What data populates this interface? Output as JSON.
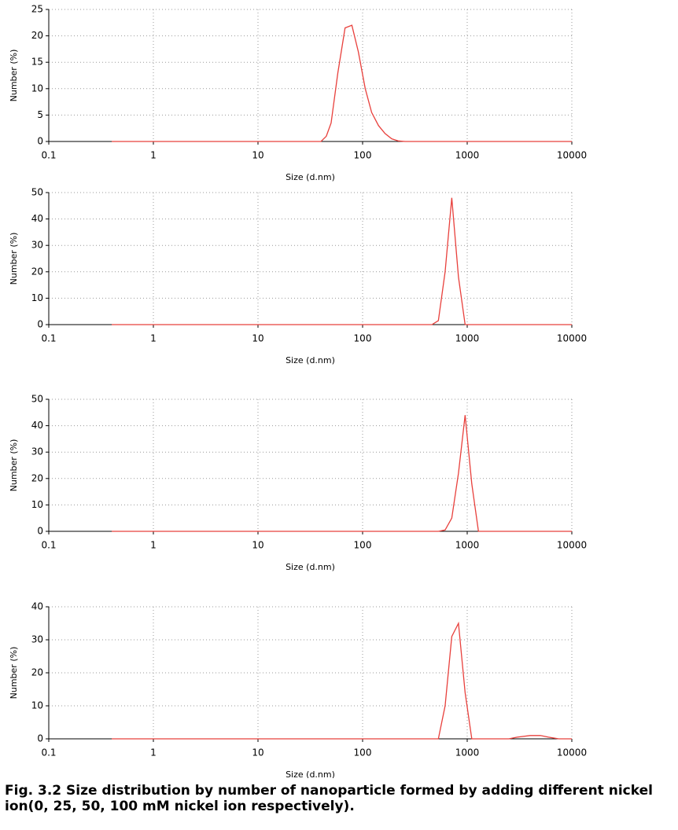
{
  "chart_data": [
    {
      "type": "line",
      "xlabel": "Size (d.nm)",
      "ylabel": "Number (%)",
      "xscale": "log",
      "grid": true,
      "xlim": [
        0.1,
        10000
      ],
      "xticks": [
        0.1,
        1,
        10,
        100,
        1000,
        10000
      ],
      "ylim": [
        0,
        25
      ],
      "yticks": [
        0,
        5,
        10,
        15,
        20,
        25
      ],
      "x": [
        0.4,
        40,
        45,
        50,
        58,
        68,
        79,
        91,
        106,
        122,
        142,
        164,
        190,
        220,
        255,
        10000
      ],
      "series": [
        {
          "color": "#e8403c",
          "values": [
            0,
            0,
            1,
            3.5,
            13,
            21.5,
            22,
            17,
            10,
            5.5,
            3,
            1.5,
            0.5,
            0.1,
            0,
            0
          ]
        }
      ]
    },
    {
      "type": "line",
      "xlabel": "Size (d.nm)",
      "ylabel": "Number (%)",
      "xscale": "log",
      "grid": true,
      "xlim": [
        0.1,
        10000
      ],
      "xticks": [
        0.1,
        1,
        10,
        100,
        1000,
        10000
      ],
      "ylim": [
        0,
        50
      ],
      "yticks": [
        0,
        10,
        20,
        30,
        40,
        50
      ],
      "x": [
        0.4,
        460,
        530,
        615,
        712,
        825,
        955,
        10000
      ],
      "series": [
        {
          "color": "#e8403c",
          "values": [
            0,
            0,
            1.5,
            20,
            48,
            18,
            0,
            0
          ]
        }
      ]
    },
    {
      "type": "line",
      "xlabel": "Size (d.nm)",
      "ylabel": "Number (%)",
      "xscale": "log",
      "grid": true,
      "xlim": [
        0.1,
        10000
      ],
      "xticks": [
        0.1,
        1,
        10,
        100,
        1000,
        10000
      ],
      "ylim": [
        0,
        50
      ],
      "yticks": [
        0,
        10,
        20,
        30,
        40,
        50
      ],
      "x": [
        0.4,
        530,
        615,
        712,
        825,
        955,
        1106,
        1281,
        10000
      ],
      "series": [
        {
          "color": "#e8403c",
          "values": [
            0,
            0,
            0.5,
            5,
            22,
            44,
            18,
            0,
            0
          ]
        }
      ]
    },
    {
      "type": "line",
      "xlabel": "Size (d.nm)",
      "ylabel": "Number (%)",
      "xscale": "log",
      "grid": true,
      "xlim": [
        0.1,
        10000
      ],
      "xticks": [
        0.1,
        1,
        10,
        100,
        1000,
        10000
      ],
      "ylim": [
        0,
        40
      ],
      "yticks": [
        0,
        10,
        20,
        30,
        40
      ],
      "x": [
        0.4,
        460,
        530,
        615,
        712,
        825,
        955,
        1106,
        2500,
        3000,
        4000,
        5000,
        6000,
        7500,
        10000
      ],
      "series": [
        {
          "color": "#e8403c",
          "values": [
            0,
            0,
            0,
            10,
            31,
            35,
            14,
            0,
            0,
            0.5,
            1,
            1,
            0.5,
            0,
            0
          ]
        }
      ]
    }
  ],
  "caption": "Fig. 3.2 Size distribution by number of nanoparticle formed by adding different nickel ion(0, 25, 50, 100 mM nickel ion respectively)."
}
